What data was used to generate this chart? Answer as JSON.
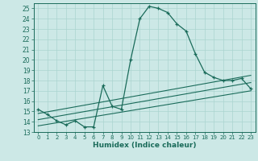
{
  "xlabel": "Humidex (Indice chaleur)",
  "bg_color": "#cce8e6",
  "line_color": "#1a6b5a",
  "grid_color": "#aad4d0",
  "xlim": [
    -0.5,
    23.5
  ],
  "ylim": [
    13,
    25.5
  ],
  "yticks": [
    13,
    14,
    15,
    16,
    17,
    18,
    19,
    20,
    21,
    22,
    23,
    24,
    25
  ],
  "xticks": [
    0,
    1,
    2,
    3,
    4,
    5,
    6,
    7,
    8,
    9,
    10,
    11,
    12,
    13,
    14,
    15,
    16,
    17,
    18,
    19,
    20,
    21,
    22,
    23
  ],
  "main_x": [
    0,
    1,
    2,
    3,
    4,
    5,
    6,
    7,
    8,
    9,
    10,
    11,
    12,
    13,
    14,
    15,
    16,
    17,
    18,
    19,
    20,
    21,
    22,
    23
  ],
  "main_y": [
    15.2,
    14.7,
    14.1,
    13.7,
    14.1,
    13.5,
    13.5,
    17.5,
    15.5,
    15.2,
    20.0,
    24.0,
    25.2,
    25.0,
    24.6,
    23.5,
    22.8,
    20.6,
    18.8,
    18.3,
    18.0,
    18.0,
    18.2,
    17.2
  ],
  "trend_lines": [
    {
      "x": [
        0,
        23
      ],
      "y": [
        14.8,
        18.5
      ]
    },
    {
      "x": [
        0,
        23
      ],
      "y": [
        14.2,
        17.8
      ]
    },
    {
      "x": [
        0,
        23
      ],
      "y": [
        13.6,
        17.0
      ]
    }
  ]
}
